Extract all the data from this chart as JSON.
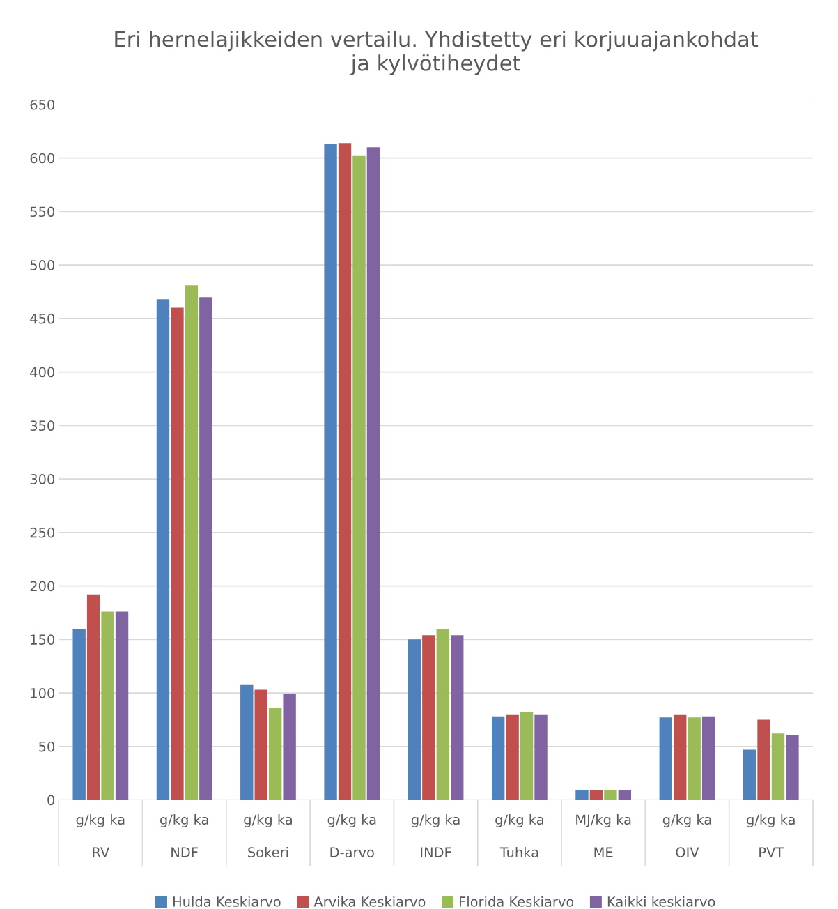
{
  "chart_data": {
    "type": "bar",
    "title": "Eri hernelajikkeiden vertailu. Yhdistetty eri korjuuajankohdat\nja kylvötiheydet",
    "categories": [
      "g/kg ka\nRV",
      "g/kg ka\nNDF",
      "g/kg ka\nSokeri",
      "g/kg ka\nD-arvo",
      "g/kg ka\nINDF",
      "g/kg ka\nTuhka",
      "MJ/kg ka\nME",
      "g/kg ka\nOIV",
      "g/kg ka\nPVT"
    ],
    "series": [
      {
        "name": "Hulda Keskiarvo",
        "color": "#4f81bd",
        "values": [
          160,
          468,
          108,
          613,
          150,
          78,
          9,
          77,
          47
        ]
      },
      {
        "name": "Arvika Keskiarvo",
        "color": "#c0504d",
        "values": [
          192,
          460,
          103,
          614,
          154,
          80,
          9,
          80,
          75
        ]
      },
      {
        "name": "Florida Keskiarvo",
        "color": "#9bbb59",
        "values": [
          176,
          481,
          86,
          602,
          160,
          82,
          9,
          77,
          62
        ]
      },
      {
        "name": "Kaikki keskiarvo",
        "color": "#8064a2",
        "values": [
          176,
          470,
          99,
          610,
          154,
          80,
          9,
          78,
          61
        ]
      }
    ],
    "ylim": [
      0,
      650
    ],
    "yticks": [
      0,
      50,
      100,
      150,
      200,
      250,
      300,
      350,
      400,
      450,
      500,
      550,
      600,
      650
    ],
    "grid": "y",
    "legend": "bottom"
  }
}
